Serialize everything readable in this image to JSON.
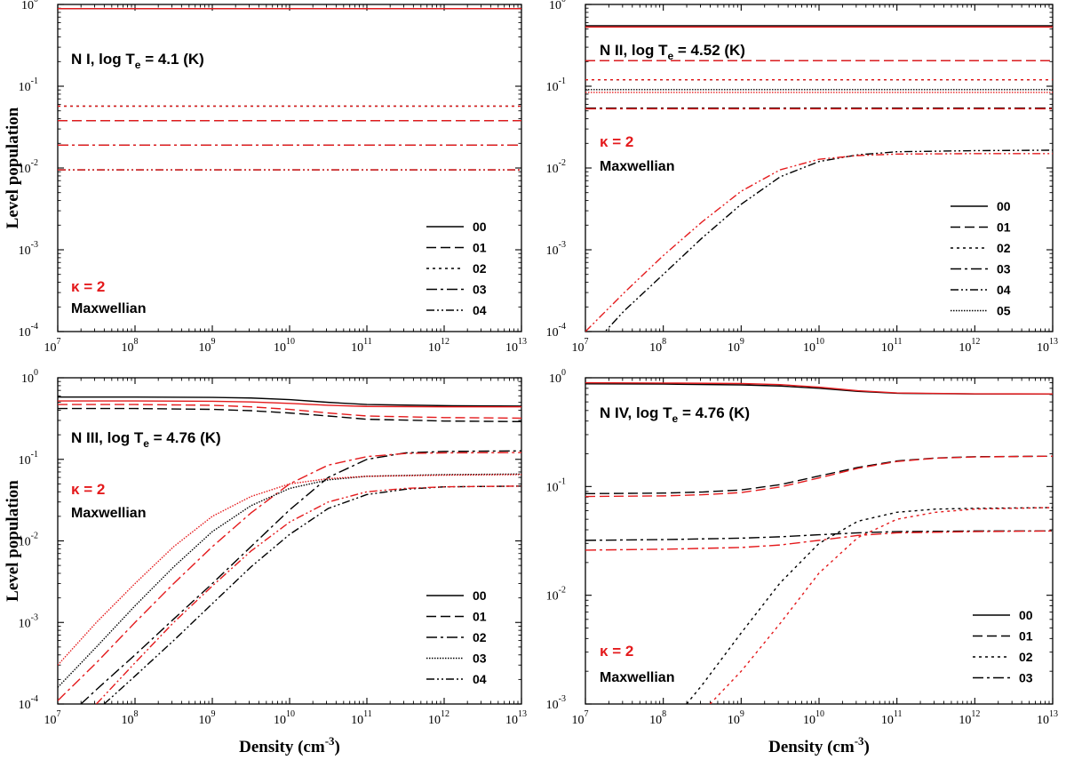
{
  "colors": {
    "maxwellian": "#000000",
    "kappa": "#e41a1c"
  },
  "chart_data": [
    {
      "type": "line",
      "panel": "top-left",
      "title": "N I, log T",
      "title_sub": "e",
      "title_tail": " = 4.1 (K)",
      "xlabel": "",
      "ylabel": "Level population",
      "ylabel_sub": "",
      "xlim": [
        7,
        13
      ],
      "ylim": [
        -4,
        0
      ],
      "x_scale": "log",
      "y_scale": "log",
      "x_ticks": [
        "7",
        "8",
        "9",
        "10",
        "11",
        "12",
        "13"
      ],
      "y_ticks": [
        "0",
        "-1",
        "-2",
        "-3",
        "-4"
      ],
      "kappa_label": "κ = 2",
      "maxwellian_label": "Maxwellian",
      "legend": [
        "00",
        "01",
        "02",
        "03",
        "04"
      ],
      "series": [
        {
          "name": "00",
          "dist": "maxwellian",
          "style": "solid",
          "x": [
            7,
            13
          ],
          "y": [
            0.89,
            0.89
          ]
        },
        {
          "name": "00",
          "dist": "kappa",
          "style": "solid",
          "x": [
            7,
            13
          ],
          "y": [
            0.89,
            0.89
          ]
        },
        {
          "name": "01",
          "dist": "maxwellian",
          "style": "dash",
          "x": [
            7,
            13
          ],
          "y": [
            0.038,
            0.038
          ]
        },
        {
          "name": "01",
          "dist": "kappa",
          "style": "dash",
          "x": [
            7,
            13
          ],
          "y": [
            0.038,
            0.038
          ]
        },
        {
          "name": "02",
          "dist": "maxwellian",
          "style": "dot",
          "x": [
            7,
            13
          ],
          "y": [
            0.057,
            0.057
          ]
        },
        {
          "name": "02",
          "dist": "kappa",
          "style": "dot",
          "x": [
            7,
            13
          ],
          "y": [
            0.057,
            0.057
          ]
        },
        {
          "name": "03",
          "dist": "maxwellian",
          "style": "dashdot",
          "x": [
            7,
            13
          ],
          "y": [
            0.019,
            0.019
          ]
        },
        {
          "name": "03",
          "dist": "kappa",
          "style": "dashdot",
          "x": [
            7,
            13
          ],
          "y": [
            0.019,
            0.019
          ]
        },
        {
          "name": "04",
          "dist": "maxwellian",
          "style": "dashdotdot",
          "x": [
            7,
            13
          ],
          "y": [
            0.0095,
            0.0095
          ]
        },
        {
          "name": "04",
          "dist": "kappa",
          "style": "dashdotdot",
          "x": [
            7,
            13
          ],
          "y": [
            0.0095,
            0.0095
          ]
        }
      ]
    },
    {
      "type": "line",
      "panel": "top-right",
      "title": "N II, log T",
      "title_sub": "e",
      "title_tail": " = 4.52 (K)",
      "xlabel": "",
      "ylabel": "",
      "xlim": [
        7,
        13
      ],
      "ylim": [
        -4,
        0
      ],
      "x_scale": "log",
      "y_scale": "log",
      "x_ticks": [
        "7",
        "8",
        "9",
        "10",
        "11",
        "12",
        "13"
      ],
      "y_ticks": [
        "0",
        "-1",
        "-2",
        "-3",
        "-4"
      ],
      "kappa_label": "κ = 2",
      "maxwellian_label": "Maxwellian",
      "legend": [
        "00",
        "01",
        "02",
        "03",
        "04",
        "05"
      ],
      "series": [
        {
          "name": "00",
          "dist": "maxwellian",
          "style": "solid",
          "x": [
            7,
            13
          ],
          "y": [
            0.55,
            0.55
          ]
        },
        {
          "name": "00",
          "dist": "kappa",
          "style": "solid",
          "x": [
            7,
            13
          ],
          "y": [
            0.53,
            0.53
          ]
        },
        {
          "name": "01",
          "dist": "maxwellian",
          "style": "dash",
          "x": [
            7,
            13
          ],
          "y": [
            0.205,
            0.205
          ]
        },
        {
          "name": "01",
          "dist": "kappa",
          "style": "dash",
          "x": [
            7,
            13
          ],
          "y": [
            0.205,
            0.205
          ]
        },
        {
          "name": "02",
          "dist": "maxwellian",
          "style": "dot",
          "x": [
            7,
            13
          ],
          "y": [
            0.12,
            0.12
          ]
        },
        {
          "name": "02",
          "dist": "kappa",
          "style": "dot",
          "x": [
            7,
            13
          ],
          "y": [
            0.12,
            0.12
          ]
        },
        {
          "name": "03",
          "dist": "maxwellian",
          "style": "dashdot",
          "x": [
            7,
            13
          ],
          "y": [
            0.054,
            0.054
          ]
        },
        {
          "name": "03",
          "dist": "kappa",
          "style": "dashdot",
          "x": [
            7,
            13
          ],
          "y": [
            0.053,
            0.053
          ]
        },
        {
          "name": "04",
          "dist": "maxwellian",
          "style": "dashdotdot",
          "x": [
            7,
            7.5,
            8,
            8.5,
            9,
            9.5,
            10,
            10.5,
            11,
            12,
            13
          ],
          "y": [
            5.5e-05,
            0.00018,
            0.0005,
            0.0014,
            0.0036,
            0.0078,
            0.012,
            0.0145,
            0.0158,
            0.0163,
            0.0165
          ]
        },
        {
          "name": "04",
          "dist": "kappa",
          "style": "dashdotdot",
          "x": [
            7,
            7.5,
            8,
            8.5,
            9,
            9.5,
            10,
            10.5,
            11,
            12,
            13
          ],
          "y": [
            0.0001,
            0.0003,
            0.00085,
            0.0022,
            0.0052,
            0.0095,
            0.0128,
            0.0142,
            0.0148,
            0.015,
            0.015
          ]
        },
        {
          "name": "05",
          "dist": "maxwellian",
          "style": "densedot",
          "x": [
            7,
            13
          ],
          "y": [
            0.091,
            0.091
          ]
        },
        {
          "name": "05",
          "dist": "kappa",
          "style": "densedot",
          "x": [
            7,
            13
          ],
          "y": [
            0.084,
            0.084
          ]
        }
      ]
    },
    {
      "type": "line",
      "panel": "bottom-left",
      "title": "N III, log T",
      "title_sub": "e",
      "title_tail": " = 4.76 (K)",
      "xlabel": "Density (cm",
      "xlabel_sup": "-3",
      "xlabel_tail": ")",
      "ylabel": "Level population",
      "xlim": [
        7,
        13
      ],
      "ylim": [
        -4,
        0
      ],
      "x_scale": "log",
      "y_scale": "log",
      "x_ticks": [
        "7",
        "8",
        "9",
        "10",
        "11",
        "12",
        "13"
      ],
      "y_ticks": [
        "0",
        "-1",
        "-2",
        "-3",
        "-4"
      ],
      "kappa_label": "κ = 2",
      "maxwellian_label": "Maxwellian",
      "legend": [
        "00",
        "01",
        "02",
        "03",
        "04"
      ],
      "series": [
        {
          "name": "00",
          "dist": "maxwellian",
          "style": "solid",
          "x": [
            7,
            8,
            9,
            9.5,
            10,
            10.5,
            11,
            12,
            13
          ],
          "y": [
            0.58,
            0.58,
            0.575,
            0.565,
            0.54,
            0.5,
            0.47,
            0.455,
            0.45
          ]
        },
        {
          "name": "00",
          "dist": "kappa",
          "style": "solid",
          "x": [
            7,
            8,
            9,
            9.5,
            10,
            10.5,
            11,
            12,
            13
          ],
          "y": [
            0.52,
            0.52,
            0.515,
            0.505,
            0.485,
            0.46,
            0.445,
            0.44,
            0.44
          ]
        },
        {
          "name": "01",
          "dist": "maxwellian",
          "style": "dash",
          "x": [
            7,
            8,
            9,
            9.5,
            10,
            10.5,
            11,
            12,
            13
          ],
          "y": [
            0.42,
            0.42,
            0.41,
            0.395,
            0.37,
            0.34,
            0.31,
            0.295,
            0.29
          ]
        },
        {
          "name": "01",
          "dist": "kappa",
          "style": "dash",
          "x": [
            7,
            8,
            9,
            9.5,
            10,
            10.5,
            11,
            12,
            13
          ],
          "y": [
            0.47,
            0.47,
            0.46,
            0.44,
            0.41,
            0.37,
            0.34,
            0.325,
            0.32
          ]
        },
        {
          "name": "02",
          "dist": "maxwellian",
          "style": "dashdot",
          "x": [
            7.3,
            7.5,
            8,
            8.5,
            9,
            9.5,
            10,
            10.5,
            11,
            11.5,
            12,
            13
          ],
          "y": [
            0.0001,
            0.00015,
            0.0004,
            0.0011,
            0.003,
            0.0085,
            0.024,
            0.06,
            0.1,
            0.12,
            0.125,
            0.127
          ]
        },
        {
          "name": "02",
          "dist": "kappa",
          "style": "dashdot",
          "x": [
            7,
            7.5,
            8,
            8.5,
            9,
            9.5,
            10,
            10.5,
            11,
            11.5,
            12,
            13
          ],
          "y": [
            0.00011,
            0.00032,
            0.001,
            0.003,
            0.0085,
            0.022,
            0.05,
            0.085,
            0.108,
            0.118,
            0.12,
            0.121
          ]
        },
        {
          "name": "03",
          "dist": "maxwellian",
          "style": "densedot",
          "x": [
            7,
            7.5,
            8,
            8.5,
            9,
            9.5,
            10,
            10.5,
            11,
            12,
            13
          ],
          "y": [
            0.00016,
            0.0005,
            0.0016,
            0.0048,
            0.013,
            0.027,
            0.044,
            0.056,
            0.062,
            0.065,
            0.066
          ]
        },
        {
          "name": "03",
          "dist": "kappa",
          "style": "densedot",
          "x": [
            7,
            7.5,
            8,
            8.5,
            9,
            9.5,
            10,
            10.5,
            11,
            12,
            13
          ],
          "y": [
            0.0003,
            0.001,
            0.003,
            0.0085,
            0.02,
            0.035,
            0.05,
            0.058,
            0.062,
            0.064,
            0.065
          ]
        },
        {
          "name": "04",
          "dist": "maxwellian",
          "style": "dashdotdot",
          "x": [
            7.6,
            8,
            8.5,
            9,
            9.5,
            10,
            10.5,
            11,
            11.5,
            12,
            13
          ],
          "y": [
            0.0001,
            0.00022,
            0.0006,
            0.0017,
            0.0048,
            0.012,
            0.025,
            0.037,
            0.043,
            0.046,
            0.047
          ]
        },
        {
          "name": "04",
          "dist": "kappa",
          "style": "dashdotdot",
          "x": [
            7.5,
            8,
            8.5,
            9,
            9.5,
            10,
            10.5,
            11,
            11.5,
            12,
            13
          ],
          "y": [
            0.0001,
            0.00032,
            0.001,
            0.0028,
            0.0075,
            0.017,
            0.03,
            0.04,
            0.044,
            0.046,
            0.047
          ]
        }
      ]
    },
    {
      "type": "line",
      "panel": "bottom-right",
      "title": "N IV, log T",
      "title_sub": "e",
      "title_tail": " = 4.76 (K)",
      "xlabel": "Density (cm",
      "xlabel_sup": "-3",
      "xlabel_tail": ")",
      "ylabel": "",
      "xlim": [
        7,
        13
      ],
      "ylim": [
        -3,
        0
      ],
      "x_scale": "log",
      "y_scale": "log",
      "x_ticks": [
        "7",
        "8",
        "9",
        "10",
        "11",
        "12",
        "13"
      ],
      "y_ticks": [
        "0",
        "-1",
        "-2",
        "-3"
      ],
      "kappa_label": "κ = 2",
      "maxwellian_label": "Maxwellian",
      "legend": [
        "00",
        "01",
        "02",
        "03"
      ],
      "series": [
        {
          "name": "00",
          "dist": "maxwellian",
          "style": "solid",
          "x": [
            7,
            8,
            9,
            9.5,
            10,
            10.5,
            11,
            12,
            13
          ],
          "y": [
            0.88,
            0.875,
            0.86,
            0.84,
            0.8,
            0.75,
            0.72,
            0.71,
            0.71
          ]
        },
        {
          "name": "00",
          "dist": "kappa",
          "style": "solid",
          "x": [
            7,
            8,
            9,
            9.5,
            10,
            10.5,
            11,
            12,
            13
          ],
          "y": [
            0.9,
            0.895,
            0.885,
            0.865,
            0.82,
            0.76,
            0.725,
            0.712,
            0.71
          ]
        },
        {
          "name": "01",
          "dist": "maxwellian",
          "style": "dash",
          "x": [
            7,
            8,
            8.5,
            9,
            9.5,
            10,
            10.5,
            11,
            11.5,
            12,
            13
          ],
          "y": [
            0.086,
            0.087,
            0.089,
            0.093,
            0.104,
            0.125,
            0.15,
            0.172,
            0.183,
            0.188,
            0.19
          ]
        },
        {
          "name": "01",
          "dist": "kappa",
          "style": "dash",
          "x": [
            7,
            8,
            8.5,
            9,
            9.5,
            10,
            10.5,
            11,
            11.5,
            12,
            13
          ],
          "y": [
            0.081,
            0.082,
            0.084,
            0.088,
            0.099,
            0.12,
            0.147,
            0.17,
            0.182,
            0.187,
            0.19
          ]
        },
        {
          "name": "02",
          "dist": "maxwellian",
          "style": "dot",
          "x": [
            8.3,
            8.5,
            9,
            9.5,
            10,
            10.5,
            11,
            11.5,
            12,
            13
          ],
          "y": [
            0.001,
            0.0015,
            0.0045,
            0.013,
            0.03,
            0.048,
            0.058,
            0.062,
            0.063,
            0.064
          ]
        },
        {
          "name": "02",
          "dist": "kappa",
          "style": "dot",
          "x": [
            8.6,
            9,
            9.5,
            10,
            10.5,
            11,
            11.5,
            12,
            13
          ],
          "y": [
            0.001,
            0.002,
            0.0055,
            0.016,
            0.034,
            0.05,
            0.058,
            0.062,
            0.064
          ]
        },
        {
          "name": "03",
          "dist": "maxwellian",
          "style": "dashdot",
          "x": [
            7,
            8,
            9,
            9.5,
            10,
            10.5,
            11,
            12,
            13
          ],
          "y": [
            0.032,
            0.0325,
            0.0335,
            0.0345,
            0.036,
            0.0375,
            0.0385,
            0.039,
            0.039
          ]
        },
        {
          "name": "03",
          "dist": "kappa",
          "style": "dashdot",
          "x": [
            7,
            8,
            9,
            9.5,
            10,
            10.5,
            11,
            12,
            13
          ],
          "y": [
            0.026,
            0.0265,
            0.0275,
            0.029,
            0.032,
            0.0355,
            0.0375,
            0.0385,
            0.039
          ]
        }
      ]
    }
  ]
}
